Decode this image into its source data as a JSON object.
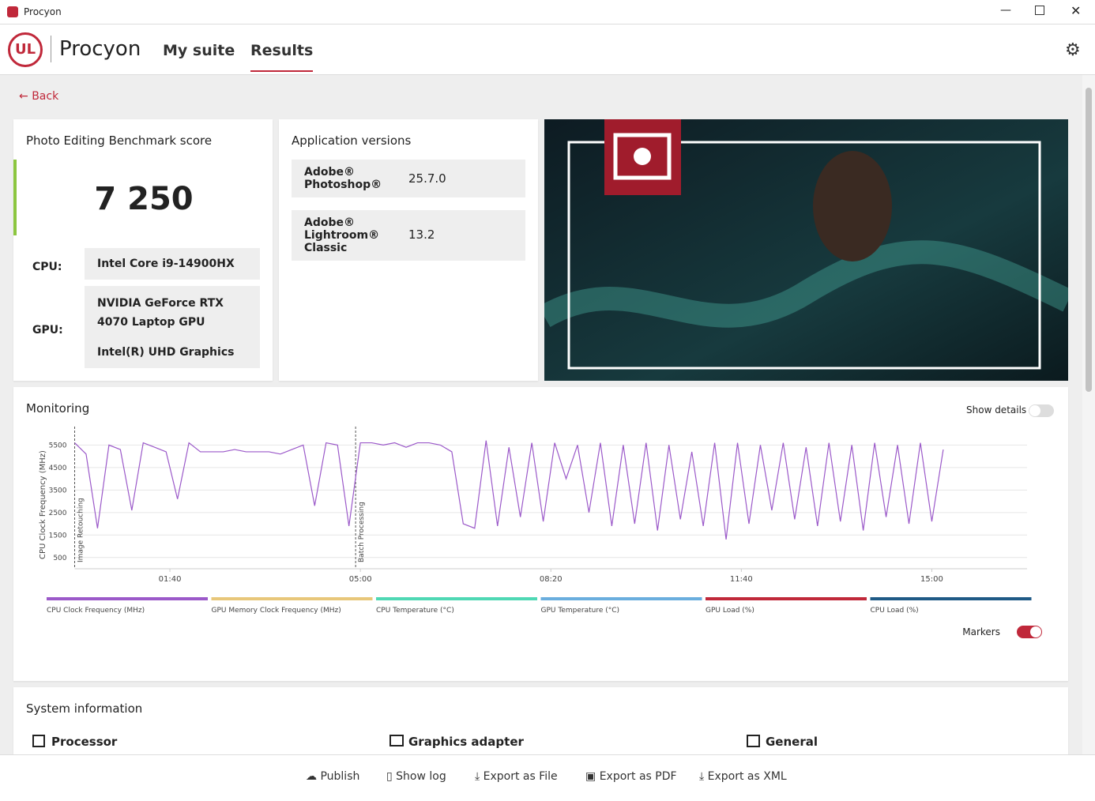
{
  "window": {
    "title": "Procyon"
  },
  "nav": {
    "logo": "UL",
    "brand": "Procyon",
    "tabs": [
      "My suite",
      "Results"
    ]
  },
  "back": "Back",
  "score_card": {
    "title": "Photo Editing Benchmark score",
    "score": "7 250",
    "cpu_label": "CPU:",
    "cpu": "Intel Core i9-14900HX",
    "gpu_label": "GPU:",
    "gpus": [
      "NVIDIA GeForce RTX 4070 Laptop GPU",
      "Intel(R) UHD Graphics"
    ]
  },
  "app_versions": {
    "title": "Application versions",
    "rows": [
      [
        "Adobe® Photoshop®",
        "25.7.0"
      ],
      [
        "Adobe® Lightroom® Classic",
        "13.2"
      ]
    ]
  },
  "monitoring": {
    "title": "Monitoring",
    "show_details": "Show details",
    "markers_label": "Markers",
    "chart_data": {
      "type": "line",
      "y_label": "CPU Clock Frequency (MHz)",
      "markers": true,
      "xlim": [
        0,
        1000
      ],
      "ylim": [
        0,
        5900
      ],
      "xticks": [
        {
          "value": 100,
          "label": "01:40"
        },
        {
          "value": 300,
          "label": "05:00"
        },
        {
          "value": 500,
          "label": "08:20"
        },
        {
          "value": 700,
          "label": "11:40"
        },
        {
          "value": 900,
          "label": "15:00"
        }
      ],
      "yticks": [
        500,
        1500,
        2500,
        3500,
        4500,
        5500
      ],
      "annotations": [
        {
          "x": 0,
          "label": "Image Retouching"
        },
        {
          "x": 295,
          "label": "Batch Processing"
        }
      ],
      "x": [
        0,
        12,
        24,
        36,
        48,
        60,
        72,
        84,
        96,
        108,
        120,
        132,
        144,
        156,
        168,
        180,
        192,
        204,
        216,
        228,
        240,
        252,
        264,
        276,
        288,
        300,
        312,
        324,
        336,
        348,
        360,
        372,
        384,
        396,
        408,
        420,
        432,
        444,
        456,
        468,
        480,
        492,
        504,
        516,
        528,
        540,
        552,
        564,
        576,
        588,
        600,
        612,
        624,
        636,
        648,
        660,
        672,
        684,
        696,
        708,
        720,
        732,
        744,
        756,
        768,
        780,
        792,
        804,
        816,
        828,
        840,
        852,
        864,
        876,
        888,
        900,
        912
      ],
      "series": [
        {
          "name": "CPU Clock Frequency (MHz)",
          "color": "#9b59c9",
          "values": [
            5600,
            5100,
            1800,
            5500,
            5300,
            2600,
            5600,
            5400,
            5200,
            3100,
            5600,
            5200,
            5200,
            5200,
            5300,
            5200,
            5200,
            5200,
            5100,
            5300,
            5500,
            2800,
            5600,
            5500,
            1900,
            5600,
            5600,
            5500,
            5600,
            5400,
            5600,
            5600,
            5500,
            5200,
            2000,
            1800,
            5700,
            1900,
            5400,
            2300,
            5600,
            2100,
            5600,
            4000,
            5500,
            2500,
            5600,
            1900,
            5500,
            2000,
            5600,
            1700,
            5500,
            2200,
            5200,
            1900,
            5600,
            1300,
            5600,
            2000,
            5500,
            2600,
            5600,
            2200,
            5400,
            1900,
            5600,
            2100,
            5500,
            1700,
            5600,
            2300,
            5500,
            2000,
            5600,
            2100,
            5300
          ]
        },
        {
          "name": "GPU Memory Clock Frequency (MHz)",
          "color": "#e8c77a"
        },
        {
          "name": "CPU Temperature (°C)",
          "color": "#4fd8b4"
        },
        {
          "name": "GPU Temperature (°C)",
          "color": "#6aaede"
        },
        {
          "name": "GPU Load (%)",
          "color": "#c0283a"
        },
        {
          "name": "CPU Load (%)",
          "color": "#1f5a86"
        }
      ]
    }
  },
  "system_information": {
    "title": "System information",
    "sections": [
      "Processor",
      "Graphics adapter",
      "General"
    ]
  },
  "toolbar": [
    "Publish",
    "Show log",
    "Export as File",
    "Export as PDF",
    "Export as XML"
  ]
}
